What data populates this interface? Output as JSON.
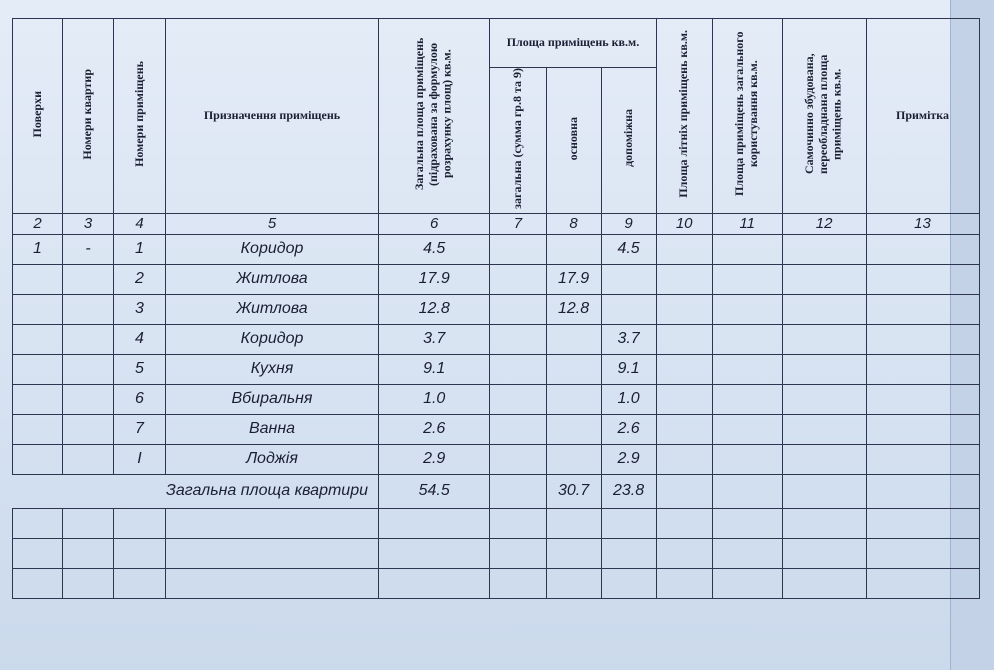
{
  "table": {
    "header": {
      "columns": [
        "Поверхи",
        "Номери квартир",
        "Номери приміщень",
        "Призначення приміщень",
        "Загальна площа приміщень (підрахована за формулою розрахунку площ) кв.м.",
        "загальна (сумма гр.8 та 9)",
        "основна",
        "допоміжна",
        "Площа літніх приміщень кв.м.",
        "Площа приміщень загального користування кв.м.",
        "Самочинно збудована, переобладнана площа приміщень кв.м.",
        "Примітка"
      ],
      "group": "Площа приміщень кв.м."
    },
    "column_numbers": [
      "2",
      "3",
      "4",
      "5",
      "6",
      "7",
      "8",
      "9",
      "10",
      "11",
      "12",
      "13"
    ],
    "rows": [
      {
        "floor": "1",
        "apartment": "-",
        "room": "1",
        "purpose": "Коридор",
        "total": "4.5",
        "auxiliary": "4.5"
      },
      {
        "room": "2",
        "purpose": "Житлова",
        "total": "17.9",
        "main": "17.9"
      },
      {
        "room": "3",
        "purpose": "Житлова",
        "total": "12.8",
        "main": "12.8"
      },
      {
        "room": "4",
        "purpose": "Коридор",
        "total": "3.7",
        "auxiliary": "3.7"
      },
      {
        "room": "5",
        "purpose": "Кухня",
        "total": "9.1",
        "auxiliary": "9.1"
      },
      {
        "room": "6",
        "purpose": "Вбиральня",
        "total": "1.0",
        "auxiliary": "1.0"
      },
      {
        "room": "7",
        "purpose": "Ванна",
        "total": "2.6",
        "auxiliary": "2.6"
      },
      {
        "room": "I",
        "purpose": "Лоджія",
        "total": "2.9",
        "auxiliary": "2.9"
      }
    ],
    "total_row": {
      "label": "Загальна площа квартири",
      "total": "54.5",
      "main": "30.7",
      "auxiliary": "23.8"
    }
  }
}
